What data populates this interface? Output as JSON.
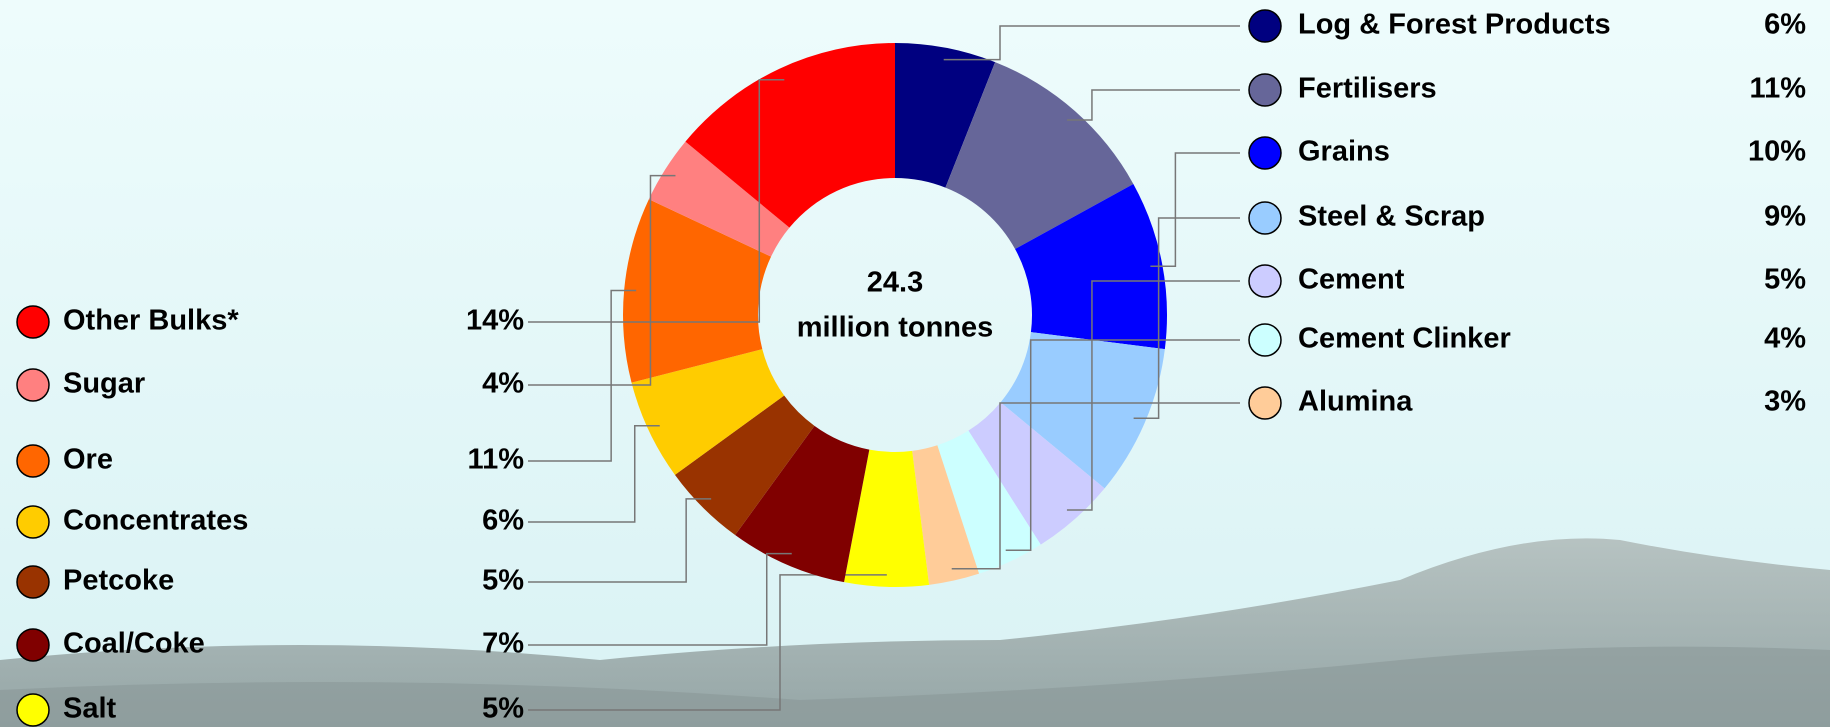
{
  "chart_data": {
    "type": "donut",
    "center_label": [
      "24.3",
      "million tonnes"
    ],
    "categories": [
      "Log & Forest Products",
      "Fertilisers",
      "Grains",
      "Steel & Scrap",
      "Cement",
      "Cement Clinker",
      "Alumina",
      "Salt",
      "Coal/Coke",
      "Petcoke",
      "Concentrates",
      "Ore",
      "Sugar",
      "Other Bulks*"
    ],
    "values": [
      6,
      11,
      10,
      9,
      5,
      4,
      3,
      5,
      7,
      5,
      6,
      11,
      4,
      14
    ],
    "value_labels": [
      "6%",
      "11%",
      "10%",
      "9%",
      "5%",
      "4%",
      "3%",
      "5%",
      "7%",
      "5%",
      "6%",
      "11%",
      "4%",
      "14%"
    ],
    "colors": [
      "#000080",
      "#666699",
      "#0000ff",
      "#99ccff",
      "#ccccff",
      "#ccffff",
      "#ffcc99",
      "#ffff00",
      "#800000",
      "#993300",
      "#ffcc00",
      "#ff6600",
      "#ff8080",
      "#ff0000"
    ]
  }
}
